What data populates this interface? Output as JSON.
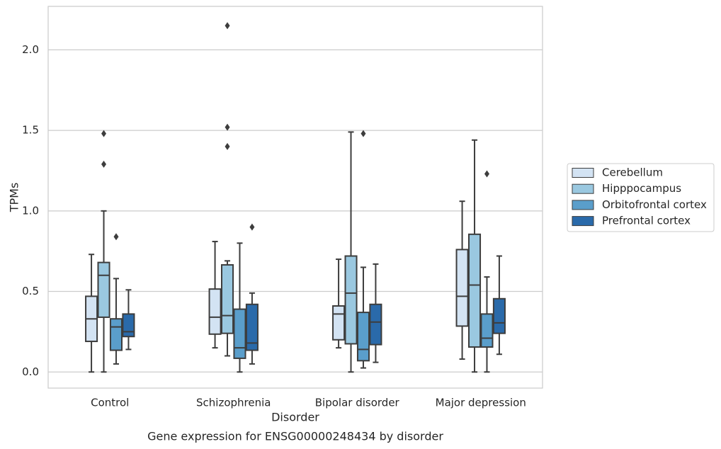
{
  "chart_data": {
    "type": "box",
    "title": "",
    "caption": "Gene expression for ENSG00000248434 by disorder",
    "xlabel": "Disorder",
    "ylabel": "TPMs",
    "ylim": [
      -0.1,
      2.27
    ],
    "yticks": [
      "0.0",
      "0.5",
      "1.0",
      "1.5",
      "2.0"
    ],
    "grid": "horizontal",
    "legend_position": "right",
    "categories": [
      "Control",
      "Schizophrenia",
      "Bipolar disorder",
      "Major depression"
    ],
    "series": [
      {
        "name": "Cerebellum",
        "color": "#d3e3f3",
        "boxes": [
          {
            "whislo": 0.0,
            "q1": 0.19,
            "med": 0.33,
            "q3": 0.47,
            "whishi": 0.73,
            "fliers": []
          },
          {
            "whislo": 0.15,
            "q1": 0.235,
            "med": 0.34,
            "q3": 0.515,
            "whishi": 0.81,
            "fliers": []
          },
          {
            "whislo": 0.15,
            "q1": 0.2,
            "med": 0.36,
            "q3": 0.41,
            "whishi": 0.7,
            "fliers": []
          },
          {
            "whislo": 0.08,
            "q1": 0.285,
            "med": 0.47,
            "q3": 0.76,
            "whishi": 1.06,
            "fliers": []
          }
        ]
      },
      {
        "name": "Hipppocampus",
        "color": "#9ac8e0",
        "boxes": [
          {
            "whislo": 0.0,
            "q1": 0.34,
            "med": 0.6,
            "q3": 0.68,
            "whishi": 1.0,
            "fliers": [
              1.29,
              1.48
            ]
          },
          {
            "whislo": 0.1,
            "q1": 0.24,
            "med": 0.35,
            "q3": 0.665,
            "whishi": 0.69,
            "fliers": [
              1.4,
              1.52,
              2.15
            ]
          },
          {
            "whislo": 0.0,
            "q1": 0.175,
            "med": 0.49,
            "q3": 0.72,
            "whishi": 1.49,
            "fliers": []
          },
          {
            "whislo": 0.0,
            "q1": 0.155,
            "med": 0.54,
            "q3": 0.855,
            "whishi": 1.44,
            "fliers": []
          }
        ]
      },
      {
        "name": "Orbitofrontal cortex",
        "color": "#5a9ecb",
        "boxes": [
          {
            "whislo": 0.05,
            "q1": 0.135,
            "med": 0.28,
            "q3": 0.33,
            "whishi": 0.58,
            "fliers": [
              0.84
            ]
          },
          {
            "whislo": 0.0,
            "q1": 0.085,
            "med": 0.15,
            "q3": 0.39,
            "whishi": 0.8,
            "fliers": []
          },
          {
            "whislo": 0.025,
            "q1": 0.07,
            "med": 0.14,
            "q3": 0.37,
            "whishi": 0.65,
            "fliers": [
              1.48
            ]
          },
          {
            "whislo": 0.0,
            "q1": 0.155,
            "med": 0.21,
            "q3": 0.36,
            "whishi": 0.59,
            "fliers": [
              1.23
            ]
          }
        ]
      },
      {
        "name": "Prefrontal cortex",
        "color": "#2a6aaa",
        "boxes": [
          {
            "whislo": 0.14,
            "q1": 0.22,
            "med": 0.25,
            "q3": 0.36,
            "whishi": 0.51,
            "fliers": []
          },
          {
            "whislo": 0.05,
            "q1": 0.135,
            "med": 0.18,
            "q3": 0.42,
            "whishi": 0.49,
            "fliers": [
              0.9
            ]
          },
          {
            "whislo": 0.06,
            "q1": 0.17,
            "med": 0.31,
            "q3": 0.42,
            "whishi": 0.67,
            "fliers": []
          },
          {
            "whislo": 0.11,
            "q1": 0.24,
            "med": 0.305,
            "q3": 0.455,
            "whishi": 0.72,
            "fliers": []
          }
        ]
      }
    ]
  }
}
